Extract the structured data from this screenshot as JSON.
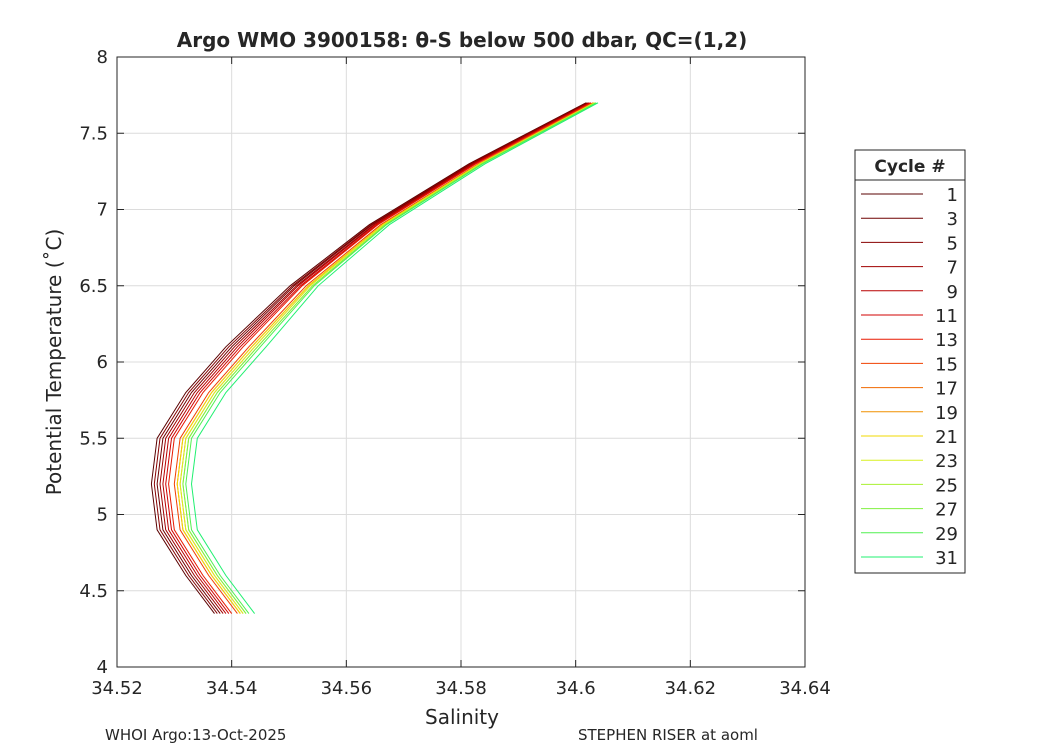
{
  "chart_data": {
    "type": "line",
    "title": "Argo WMO 3900158: θ-S below 500 dbar,  QC=(1,2)",
    "xlabel": "Salinity",
    "ylabel": "Potential Temperature (˚C)",
    "xlim": [
      34.52,
      34.64
    ],
    "ylim": [
      4,
      8
    ],
    "xticks": [
      34.52,
      34.54,
      34.56,
      34.58,
      34.6,
      34.62,
      34.64
    ],
    "xtick_labels": [
      "34.52",
      "34.54",
      "34.56",
      "34.58",
      "34.6",
      "34.62",
      "34.64"
    ],
    "yticks": [
      4,
      4.5,
      5,
      5.5,
      6,
      6.5,
      7,
      7.5,
      8
    ],
    "ytick_labels": [
      "4",
      "4.5",
      "5",
      "5.5",
      "6",
      "6.5",
      "7",
      "7.5",
      "8"
    ],
    "grid": true,
    "legend_title": "Cycle #",
    "legend_placement": "right-outside",
    "temperature_levels": [
      4.35,
      4.6,
      4.9,
      5.2,
      5.5,
      5.8,
      6.1,
      6.5,
      6.9,
      7.3,
      7.7
    ],
    "series": [
      {
        "name": "1",
        "color": "#5a0000",
        "salinity": [
          34.537,
          34.532,
          34.527,
          34.526,
          34.527,
          34.532,
          34.539,
          34.5502,
          34.564,
          34.5814,
          34.6018
        ]
      },
      {
        "name": "3",
        "color": "#6e0000",
        "salinity": [
          34.538,
          34.533,
          34.528,
          34.527,
          34.528,
          34.533,
          34.54,
          34.5509,
          34.5645,
          34.5818,
          34.6021
        ]
      },
      {
        "name": "5",
        "color": "#870000",
        "salinity": [
          34.5375,
          34.5325,
          34.5275,
          34.5265,
          34.5275,
          34.5325,
          34.5395,
          34.5506,
          34.5643,
          34.5816,
          34.602
        ]
      },
      {
        "name": "7",
        "color": "#a00000",
        "salinity": [
          34.5385,
          34.5335,
          34.5285,
          34.5275,
          34.5285,
          34.5335,
          34.5405,
          34.5513,
          34.5648,
          34.582,
          34.6023
        ]
      },
      {
        "name": "9",
        "color": "#b80000",
        "salinity": [
          34.539,
          34.534,
          34.529,
          34.528,
          34.529,
          34.534,
          34.541,
          34.5516,
          34.565,
          34.5822,
          34.6024
        ]
      },
      {
        "name": "11",
        "color": "#d00000",
        "salinity": [
          34.5395,
          34.5345,
          34.5295,
          34.5285,
          34.5295,
          34.5345,
          34.5415,
          34.552,
          34.5653,
          34.5824,
          34.6026
        ]
      },
      {
        "name": "13",
        "color": "#e81800",
        "salinity": [
          34.54,
          34.535,
          34.53,
          34.529,
          34.53,
          34.535,
          34.542,
          34.5523,
          34.5655,
          34.5826,
          34.6027
        ]
      },
      {
        "name": "15",
        "color": "#f04000",
        "salinity": [
          34.541,
          34.536,
          34.531,
          34.53,
          34.531,
          34.536,
          34.543,
          34.553,
          34.566,
          34.583,
          34.603
        ]
      },
      {
        "name": "17",
        "color": "#f06800",
        "salinity": [
          34.5415,
          34.5365,
          34.5315,
          34.5305,
          34.5315,
          34.5365,
          34.5435,
          34.5534,
          34.5663,
          34.5832,
          34.6032
        ]
      },
      {
        "name": "19",
        "color": "#f09000",
        "salinity": [
          34.542,
          34.537,
          34.532,
          34.531,
          34.532,
          34.537,
          34.544,
          34.5537,
          34.5665,
          34.5834,
          34.6033
        ]
      },
      {
        "name": "21",
        "color": "#f0d800",
        "salinity": [
          34.5415,
          34.5365,
          34.5315,
          34.5305,
          34.5315,
          34.5365,
          34.5435,
          34.5534,
          34.5663,
          34.5832,
          34.6032
        ]
      },
      {
        "name": "23",
        "color": "#d8f020",
        "salinity": [
          34.542,
          34.537,
          34.532,
          34.531,
          34.532,
          34.537,
          34.544,
          34.5537,
          34.5665,
          34.5834,
          34.6033
        ]
      },
      {
        "name": "25",
        "color": "#a8f030",
        "salinity": [
          34.5425,
          34.5375,
          34.5325,
          34.5315,
          34.5325,
          34.5375,
          34.5445,
          34.5541,
          34.5668,
          34.5836,
          34.6035
        ]
      },
      {
        "name": "27",
        "color": "#80f040",
        "salinity": [
          34.5425,
          34.5375,
          34.5325,
          34.5315,
          34.5325,
          34.5375,
          34.5445,
          34.5541,
          34.5668,
          34.5836,
          34.6035
        ]
      },
      {
        "name": "29",
        "color": "#50f050",
        "salinity": [
          34.543,
          34.538,
          34.533,
          34.532,
          34.533,
          34.538,
          34.545,
          34.5544,
          34.567,
          34.5838,
          34.6036
        ]
      },
      {
        "name": "31",
        "color": "#20f070",
        "salinity": [
          34.544,
          34.539,
          34.534,
          34.533,
          34.534,
          34.539,
          34.546,
          34.5551,
          34.5675,
          34.5842,
          34.6039
        ]
      }
    ]
  },
  "footer": {
    "left": "WHOI Argo:13-Oct-2025",
    "right": "STEPHEN RISER at aoml"
  }
}
